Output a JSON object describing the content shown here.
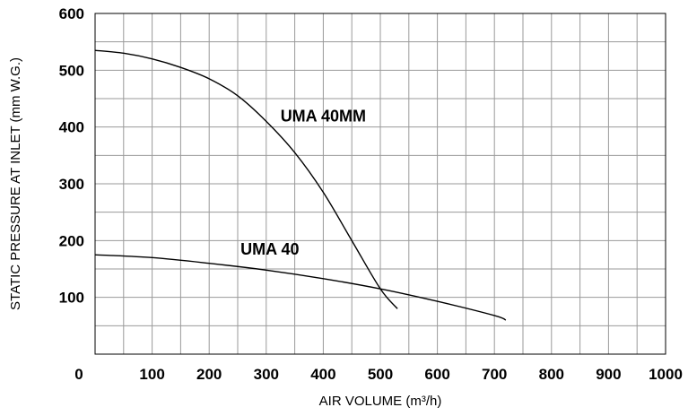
{
  "chart_data": {
    "type": "line",
    "xlabel": "AIR VOLUME (m³/h)",
    "ylabel": "STATIC PRESSURE AT INLET (mm W.G.)",
    "xlim": [
      0,
      1000
    ],
    "ylim": [
      0,
      600
    ],
    "x_ticks": [
      0,
      100,
      200,
      300,
      400,
      500,
      600,
      700,
      800,
      900,
      1000
    ],
    "y_ticks": [
      100,
      200,
      300,
      400,
      500,
      600
    ],
    "x_grid_step": 50,
    "y_grid_step": 50,
    "grid": true,
    "series": [
      {
        "name": "UMA 40MM",
        "x": [
          0,
          50,
          100,
          150,
          200,
          250,
          300,
          350,
          400,
          450,
          500,
          530
        ],
        "y": [
          535,
          530,
          520,
          505,
          485,
          455,
          410,
          355,
          285,
          200,
          115,
          80
        ]
      },
      {
        "name": "UMA 40",
        "x": [
          0,
          100,
          200,
          300,
          400,
          500,
          600,
          700,
          720
        ],
        "y": [
          175,
          170,
          160,
          148,
          133,
          115,
          93,
          68,
          60
        ]
      }
    ],
    "annotations": [
      {
        "text": "UMA 40MM",
        "x": 325,
        "y": 410
      },
      {
        "text": "UMA 40",
        "x": 255,
        "y": 175
      }
    ]
  }
}
